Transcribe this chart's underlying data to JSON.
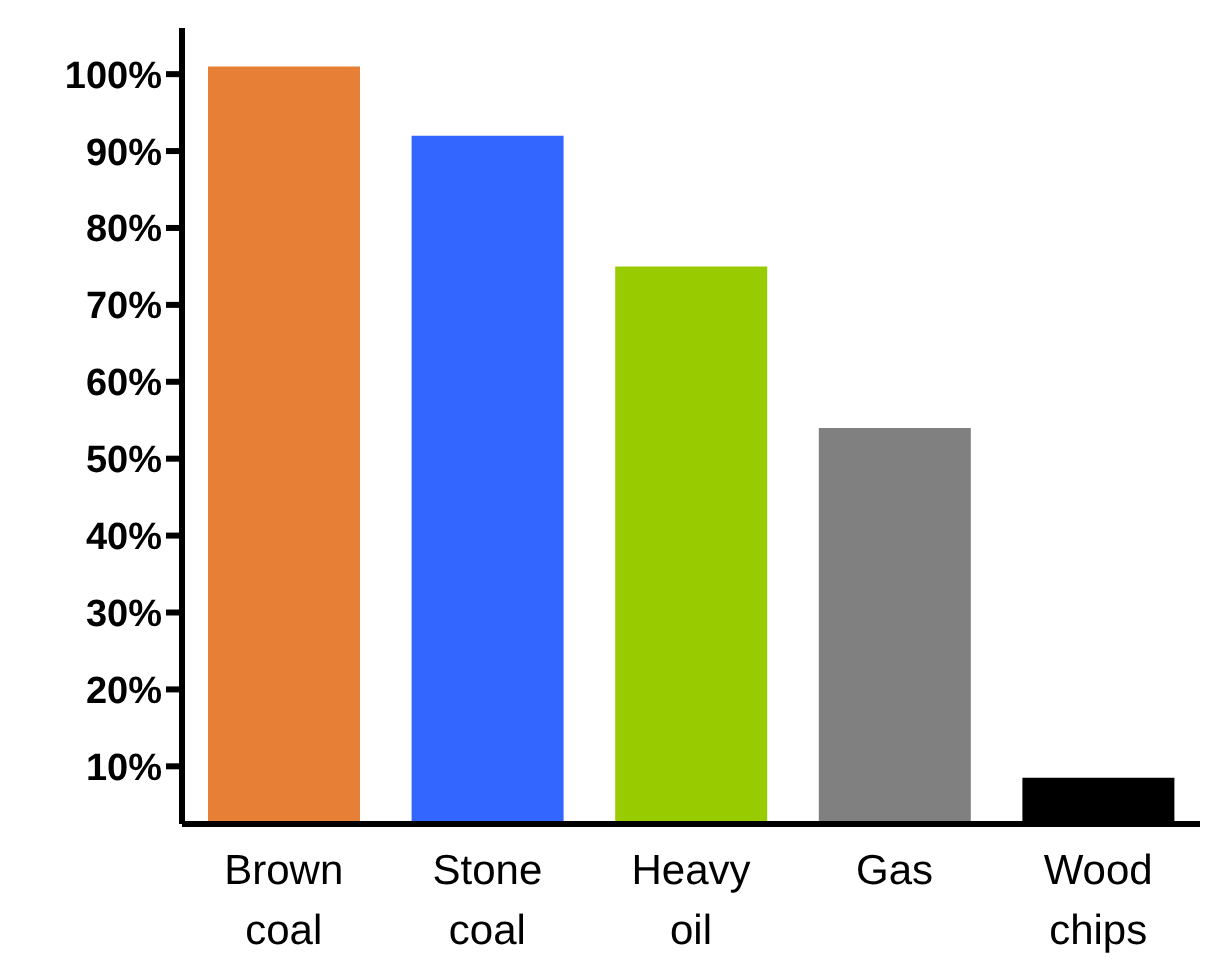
{
  "chart_data": {
    "type": "bar",
    "categories": [
      "Brown coal",
      "Stone coal",
      "Heavy oil",
      "Gas",
      "Wood chips"
    ],
    "values": [
      101,
      92,
      75,
      54,
      8.5
    ],
    "colors": [
      "#e87f36",
      "#3366ff",
      "#99cc00",
      "#808080",
      "#000000"
    ],
    "ylim": [
      2.5,
      106
    ],
    "yticks": [
      {
        "value": 10,
        "label": "10%"
      },
      {
        "value": 20,
        "label": "20%"
      },
      {
        "value": 30,
        "label": "30%"
      },
      {
        "value": 40,
        "label": "40%"
      },
      {
        "value": 50,
        "label": "50%"
      },
      {
        "value": 60,
        "label": "60%"
      },
      {
        "value": 70,
        "label": "70%"
      },
      {
        "value": 80,
        "label": "80%"
      },
      {
        "value": 90,
        "label": "90%"
      },
      {
        "value": 100,
        "label": "100%"
      }
    ],
    "grid": false
  }
}
